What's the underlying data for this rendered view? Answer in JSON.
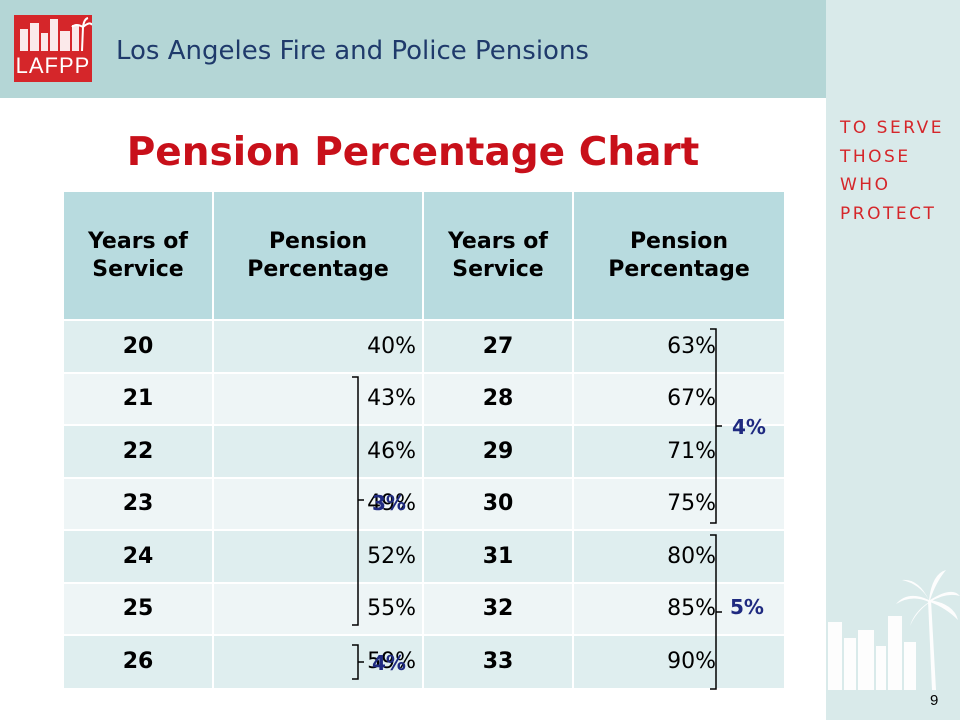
{
  "header": {
    "logo_text": "LAFPP",
    "org_name": "Los Angeles Fire and Police Pensions"
  },
  "tagline": [
    "TO SERVE",
    "THOSE",
    "WHO",
    "PROTECT"
  ],
  "title": "Pension Percentage Chart",
  "table": {
    "headers": [
      [
        "Years of",
        "Service"
      ],
      [
        "Pension",
        "Percentage"
      ],
      [
        "Years of",
        "Service"
      ],
      [
        "Pension",
        "Percentage"
      ]
    ],
    "rows": [
      [
        "20",
        "40%",
        "27",
        "63%"
      ],
      [
        "21",
        "43%",
        "28",
        "67%"
      ],
      [
        "22",
        "46%",
        "29",
        "71%"
      ],
      [
        "23",
        "49%",
        "30",
        "75%"
      ],
      [
        "24",
        "52%",
        "31",
        "80%"
      ],
      [
        "25",
        "55%",
        "32",
        "85%"
      ],
      [
        "26",
        "59%",
        "33",
        "90%"
      ]
    ]
  },
  "brackets": {
    "left_rows_21_25": "3%",
    "left_row_26": "4%",
    "right_rows_27_30": "4%",
    "right_rows_31_33": "5%"
  },
  "page_number": "9",
  "colors": {
    "header_bg": "#b4d6d6",
    "side_bg": "#d9eaea",
    "accent_red": "#c8101a",
    "brand_navy": "#1f3a6b",
    "bracket_label": "#1f2a80"
  }
}
